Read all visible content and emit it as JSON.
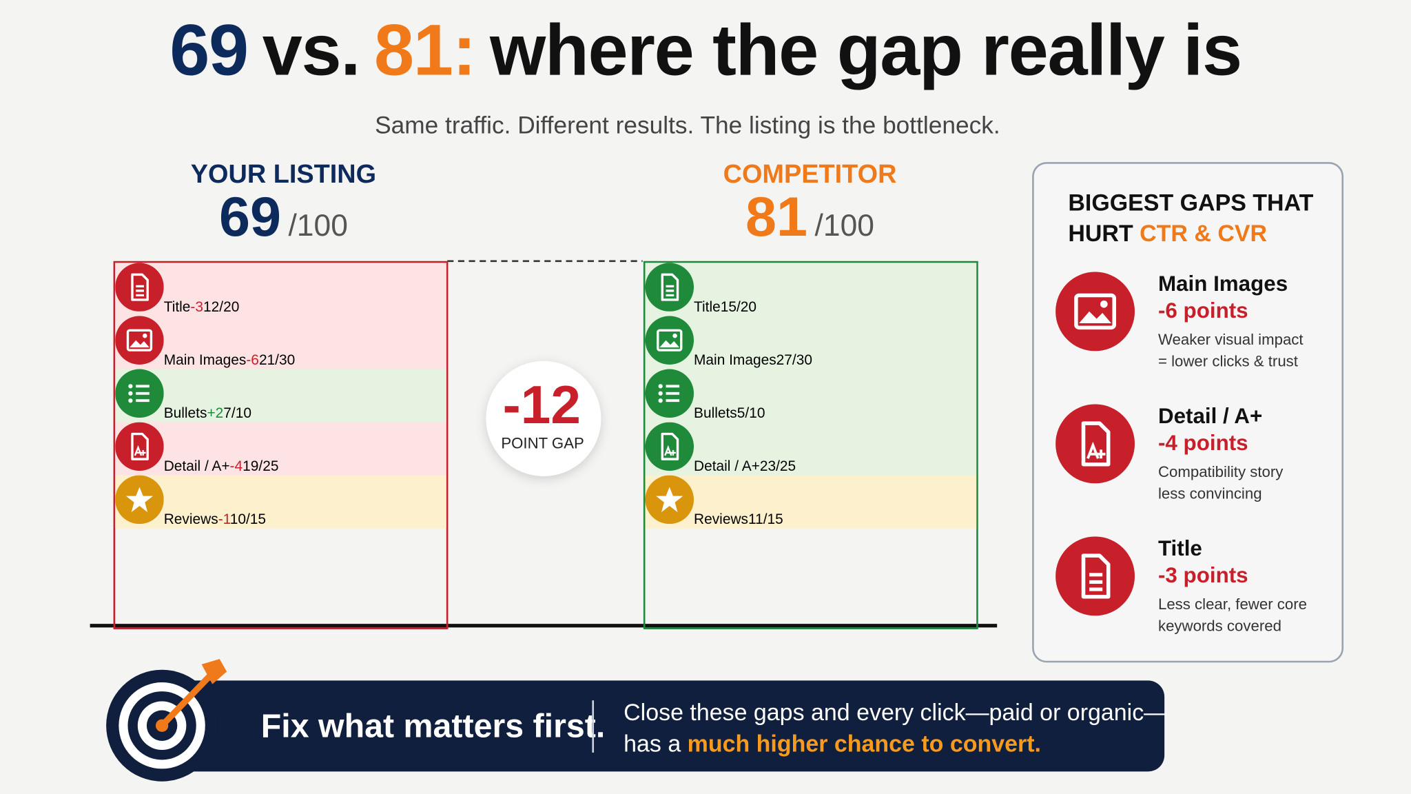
{
  "header": {
    "title": {
      "score_a": "69",
      "vs": "vs.",
      "score_b": "81:",
      "rest": "where the gap really is"
    },
    "subtitle": "Same traffic. Different results. The listing is the bottleneck."
  },
  "your_listing": {
    "label": "YOUR LISTING",
    "score": "69",
    "max": "/100",
    "color": "#0d2a5c",
    "rows": [
      {
        "name": "Title",
        "delta": "-3",
        "score": "12",
        "max": "/20",
        "color": "#fde3e3",
        "icon_color": "#c8202a"
      },
      {
        "name": "Main Images",
        "delta": "-6",
        "score": "21",
        "max": "/30",
        "color": "#fde3e3",
        "icon_color": "#c8202a"
      },
      {
        "name": "Bullets",
        "delta": "+2",
        "score": "7",
        "max": "/10",
        "color": "#e5f3e0",
        "icon_color": "#1f8a3a"
      },
      {
        "name": "Detail / A+",
        "delta": "-4",
        "score": "19",
        "max": "/25",
        "color": "#fde3e3",
        "icon_color": "#c8202a"
      },
      {
        "name": "Reviews",
        "delta": "-1",
        "score": "10",
        "max": "/15",
        "color": "#fdf0cc",
        "icon_color": "#d9950c"
      }
    ]
  },
  "competitor": {
    "label": "COMPETITOR",
    "score": "81",
    "max": "/100",
    "color": "#f07a1a",
    "rows": [
      {
        "name": "Title",
        "score": "15",
        "max": "/20",
        "color": "#e5f3e0",
        "icon_color": "#1f8a3a"
      },
      {
        "name": "Main Images",
        "score": "27",
        "max": "/30",
        "color": "#e5f3e0",
        "icon_color": "#1f8a3a"
      },
      {
        "name": "Bullets",
        "score": "5",
        "max": "/10",
        "color": "#e5f3e0",
        "icon_color": "#1f8a3a"
      },
      {
        "name": "Detail / A+",
        "score": "23",
        "max": "/25",
        "color": "#e5f3e0",
        "icon_color": "#1f8a3a"
      },
      {
        "name": "Reviews",
        "score": "11",
        "max": "/15",
        "color": "#fdf0cc",
        "icon_color": "#d9950c"
      }
    ]
  },
  "gap": {
    "value": "-12",
    "label": "POINT GAP"
  },
  "biggest_gaps": {
    "heading_1": "BIGGEST GAPS THAT",
    "heading_2": "HURT",
    "heading_highlight": "CTR & CVR",
    "items": [
      {
        "name": "Main Images",
        "points": "-6 points",
        "note_1": "Weaker visual impact",
        "note_2": "= lower clicks & trust"
      },
      {
        "name": "Detail / A+",
        "points": "-4 points",
        "note_1": "Compatibility story",
        "note_2": "less convincing"
      },
      {
        "name": "Title",
        "points": "-3 points",
        "note_1": "Less clear, fewer core",
        "note_2": "keywords covered"
      }
    ]
  },
  "footer": {
    "headline": "Fix what matters first.",
    "text_1": "Close these gaps and every click—paid or organic—",
    "text_2": "has a",
    "highlight": "much higher chance to convert."
  }
}
